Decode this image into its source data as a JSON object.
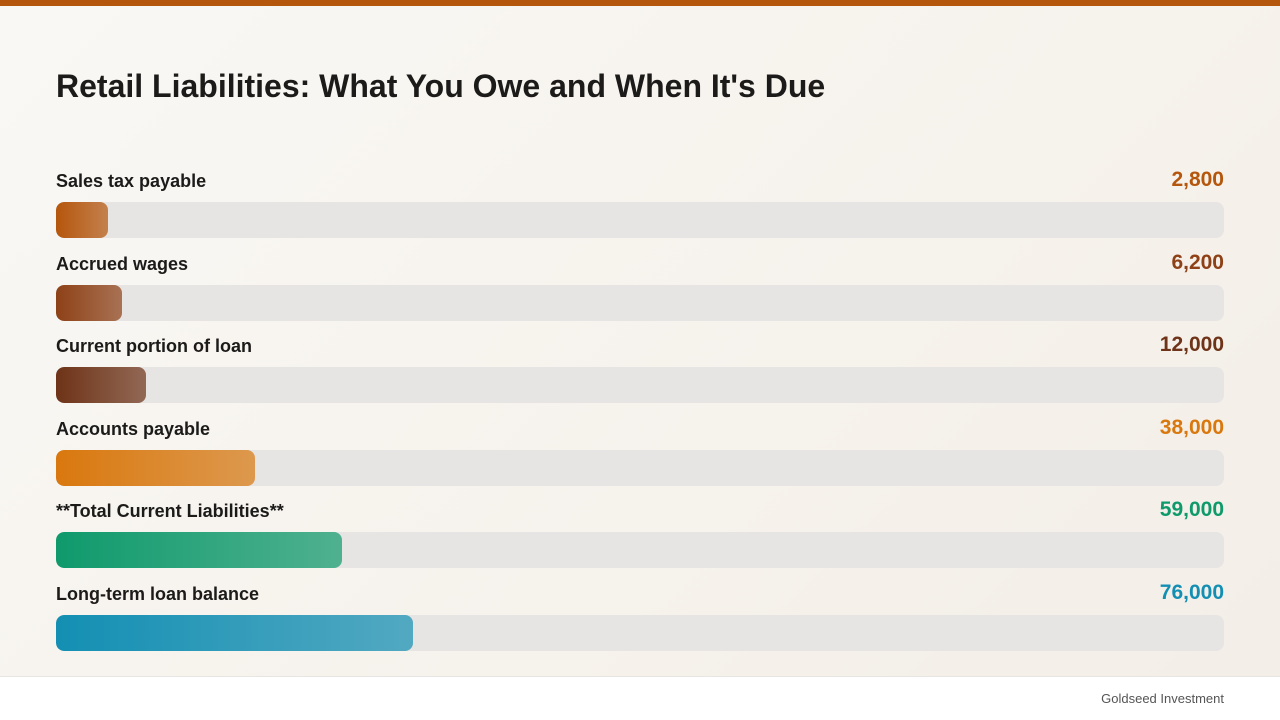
{
  "colors": {
    "accent": "#b5560d",
    "track": "#e6e5e3"
  },
  "footer": {
    "brand": "Goldseed Investment"
  },
  "chart_data": {
    "type": "bar",
    "title": "Retail Liabilities: What You Owe and When It's Due",
    "xlabel": "",
    "ylabel": "",
    "orientation": "horizontal",
    "xlim": [
      0,
      280000
    ],
    "grid": false,
    "categories": [
      "Sales tax payable",
      "Accrued wages",
      "Current portion of loan",
      "Accounts payable",
      "**Total Current Liabilities**",
      "Long-term loan balance"
    ],
    "values": [
      2800,
      6200,
      12000,
      38000,
      59000,
      76000
    ],
    "value_labels": [
      "2,800",
      "6,200",
      "12,000",
      "38,000",
      "59,000",
      "76,000"
    ],
    "colors": [
      "#b5560d",
      "#8e4117",
      "#6e3318",
      "#d9780e",
      "#0f9a6c",
      "#138fb3"
    ]
  }
}
